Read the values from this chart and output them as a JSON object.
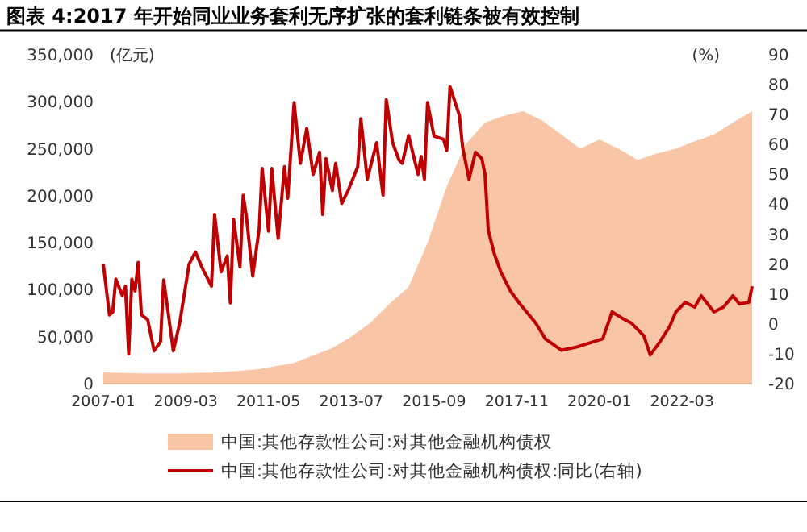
{
  "chart_data": {
    "type": "area",
    "title": "图表 4:2017 年开始同业业务套利无序扩张的套利链条被有效控制",
    "ylabel": "(亿元)",
    "y2label": "(%)",
    "xlim": [
      "2007-01",
      "2024-01"
    ],
    "xticks": [
      "2007-01",
      "2009-03",
      "2011-05",
      "2013-07",
      "2015-09",
      "2017-11",
      "2020-01",
      "2022-03"
    ],
    "ylim": [
      0,
      350000
    ],
    "yticks": [
      0,
      {
        "value": 50000,
        "label": "50,000"
      },
      {
        "value": 100000,
        "label": "100,000"
      },
      {
        "value": 150000,
        "label": "150,000"
      },
      {
        "value": 200000,
        "label": "200,000"
      },
      {
        "value": 250000,
        "label": "250,000"
      },
      {
        "value": 300000,
        "label": "300,000"
      },
      {
        "value": 350000,
        "label": "350,000"
      }
    ],
    "y2lim": [
      -20,
      90
    ],
    "y2ticks": [
      -20,
      -10,
      0,
      10,
      20,
      30,
      40,
      50,
      60,
      70,
      80,
      90
    ],
    "legend": "bottom",
    "grid": false,
    "series": [
      {
        "name": "中国:其他存款性公司:对其他金融机构债权",
        "color": "#f8c6a6",
        "x": [
          "2007-01",
          "2008-01",
          "2009-01",
          "2010-01",
          "2011-01",
          "2012-01",
          "2012-07",
          "2013-01",
          "2013-07",
          "2014-01",
          "2014-07",
          "2015-01",
          "2015-07",
          "2016-01",
          "2016-07",
          "2017-01",
          "2017-07",
          "2018-01",
          "2018-07",
          "2019-01",
          "2019-07",
          "2020-01",
          "2020-07",
          "2021-01",
          "2021-07",
          "2022-01",
          "2022-07",
          "2023-01",
          "2023-07",
          "2024-01"
        ],
        "values": [
          12000,
          11000,
          11000,
          12000,
          15000,
          22000,
          30000,
          38000,
          50000,
          65000,
          85000,
          103000,
          150000,
          210000,
          255000,
          278000,
          285000,
          290000,
          280000,
          265000,
          250000,
          260000,
          250000,
          238000,
          245000,
          250000,
          258000,
          265000,
          278000,
          290000
        ]
      },
      {
        "name": "中国:其他存款性公司:对其他金融机构债权:同比(右轴)",
        "type": "line",
        "axis": "y2",
        "color": "#c00000",
        "x": [
          "2007-01",
          "2007-03",
          "2007-04",
          "2007-05",
          "2007-07",
          "2007-08",
          "2007-09",
          "2007-10",
          "2007-11",
          "2007-12",
          "2008-01",
          "2008-03",
          "2008-05",
          "2008-07",
          "2008-08",
          "2008-10",
          "2008-11",
          "2009-01",
          "2009-04",
          "2009-06",
          "2009-08",
          "2009-11",
          "2009-12",
          "2010-02",
          "2010-04",
          "2010-05",
          "2010-06",
          "2010-08",
          "2010-09",
          "2010-10",
          "2010-12",
          "2011-02",
          "2011-03",
          "2011-05",
          "2011-06",
          "2011-08",
          "2011-10",
          "2011-11",
          "2012-01",
          "2012-03",
          "2012-05",
          "2012-07",
          "2012-09",
          "2012-10",
          "2012-11",
          "2013-01",
          "2013-02",
          "2013-04",
          "2013-06",
          "2013-09",
          "2013-10",
          "2013-12",
          "2014-03",
          "2014-05",
          "2014-06",
          "2014-08",
          "2014-10",
          "2014-11",
          "2015-01",
          "2015-04",
          "2015-05",
          "2015-06",
          "2015-07",
          "2015-09",
          "2015-12",
          "2016-01",
          "2016-02",
          "2016-05",
          "2016-06",
          "2016-08",
          "2016-10",
          "2016-12",
          "2017-01",
          "2017-02",
          "2017-04",
          "2017-06",
          "2017-09",
          "2017-12",
          "2018-05",
          "2018-08",
          "2019-01",
          "2019-06",
          "2019-11",
          "2020-02",
          "2020-05",
          "2020-08",
          "2020-11",
          "2021-03",
          "2021-05",
          "2021-08",
          "2021-11",
          "2022-01",
          "2022-04",
          "2022-07",
          "2022-09",
          "2023-01",
          "2023-04",
          "2023-07",
          "2023-09",
          "2023-12",
          "2024-01"
        ],
        "values": [
          20,
          3,
          4,
          15,
          9.5,
          12.6,
          -10,
          15,
          11,
          20.6,
          3,
          1.4,
          -9,
          -6,
          14.7,
          -1,
          -9,
          0.3,
          20,
          24,
          19,
          12.6,
          36.6,
          17.4,
          22.7,
          7,
          35,
          19,
          43,
          36,
          16,
          32,
          52,
          31,
          52,
          28.6,
          52.6,
          42,
          74,
          53.7,
          65.4,
          50,
          57.4,
          36.6,
          55.3,
          44.6,
          53.7,
          40.3,
          44.6,
          52.6,
          68.6,
          48.4,
          60.6,
          43,
          75,
          60.6,
          54.8,
          53.7,
          63,
          50,
          56,
          48.4,
          74,
          62.8,
          61.7,
          58,
          79.3,
          69.7,
          59,
          48.4,
          57.4,
          55.3,
          50,
          31.3,
          23.3,
          17.4,
          11,
          6.7,
          0.3,
          -5,
          -8.8,
          -7.7,
          -6,
          -5,
          4,
          2,
          0.3,
          -4,
          -10.4,
          -6,
          -1,
          4,
          7.2,
          5.6,
          9.4,
          4,
          5.6,
          9.4,
          6.7,
          7.2,
          12.6
        ]
      }
    ]
  }
}
